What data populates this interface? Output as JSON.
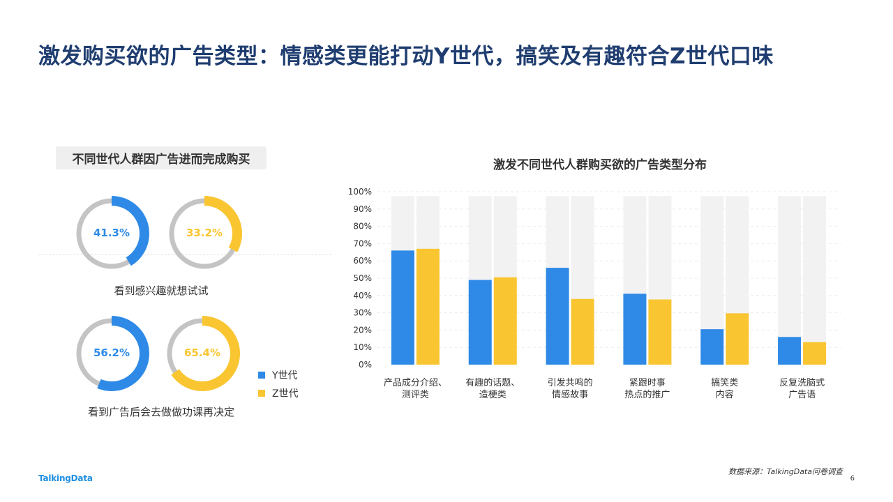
{
  "title": "激发购买欲的广告类型：情感类更能打动Y世代，搞笑及有趣符合Z世代口味",
  "left_panel": {
    "label": "不同世代人群因广告进而完成购买",
    "groups": [
      {
        "caption": "看到感兴趣就想试试",
        "donuts": [
          {
            "series": "Y世代",
            "value": 41.3,
            "label": "41.3%"
          },
          {
            "series": "Z世代",
            "value": 33.2,
            "label": "33.2%"
          }
        ]
      },
      {
        "caption": "看到广告后会去做做功课再决定",
        "donuts": [
          {
            "series": "Y世代",
            "value": 56.2,
            "label": "56.2%"
          },
          {
            "series": "Z世代",
            "value": 65.4,
            "label": "65.4%"
          }
        ]
      }
    ]
  },
  "legend": [
    {
      "name": "Y世代",
      "color": "#2e8ae6"
    },
    {
      "name": "Z世代",
      "color": "#f9c530"
    }
  ],
  "colors": {
    "y": "#2e8ae6",
    "z": "#f9c530",
    "track_donut": "#c4c4c4",
    "track_bar": "#f2f2f2",
    "title": "#1f3d70"
  },
  "chart_data": [
    {
      "type": "pie",
      "categories": [
        "看到感兴趣就想试试",
        "看到广告后会去做做功课再决定"
      ],
      "series": [
        {
          "name": "Y世代",
          "values": [
            41.3,
            56.2
          ]
        },
        {
          "name": "Z世代",
          "values": [
            33.2,
            65.4
          ]
        }
      ],
      "title": "不同世代人群因广告进而完成购买",
      "unit": "%"
    },
    {
      "type": "bar",
      "title": "激发不同世代人群购买欲的广告类型分布",
      "categories": [
        [
          "产品成分介绍、",
          "测评类"
        ],
        [
          "有趣的话题、",
          "造梗类"
        ],
        [
          "引发共鸣的",
          "情感故事"
        ],
        [
          "紧跟时事",
          "热点的推广"
        ],
        [
          "搞笑类",
          "内容"
        ],
        [
          "反复洗脑式",
          "广告语"
        ]
      ],
      "series": [
        {
          "name": "Y世代",
          "values": [
            66,
            49,
            56,
            41,
            20.5,
            16
          ]
        },
        {
          "name": "Z世代",
          "values": [
            67,
            50.5,
            38,
            37.7,
            29.7,
            13
          ]
        }
      ],
      "ylim": [
        0,
        100
      ],
      "yticks": [
        "0%",
        "10%",
        "20%",
        "30%",
        "40%",
        "50%",
        "60%",
        "70%",
        "80%",
        "90%",
        "100%"
      ],
      "legend": "right",
      "grid": true
    }
  ],
  "footer": {
    "source": "数据来源：TalkingData问卷调查",
    "page": "6",
    "logo": "TalkingData"
  }
}
